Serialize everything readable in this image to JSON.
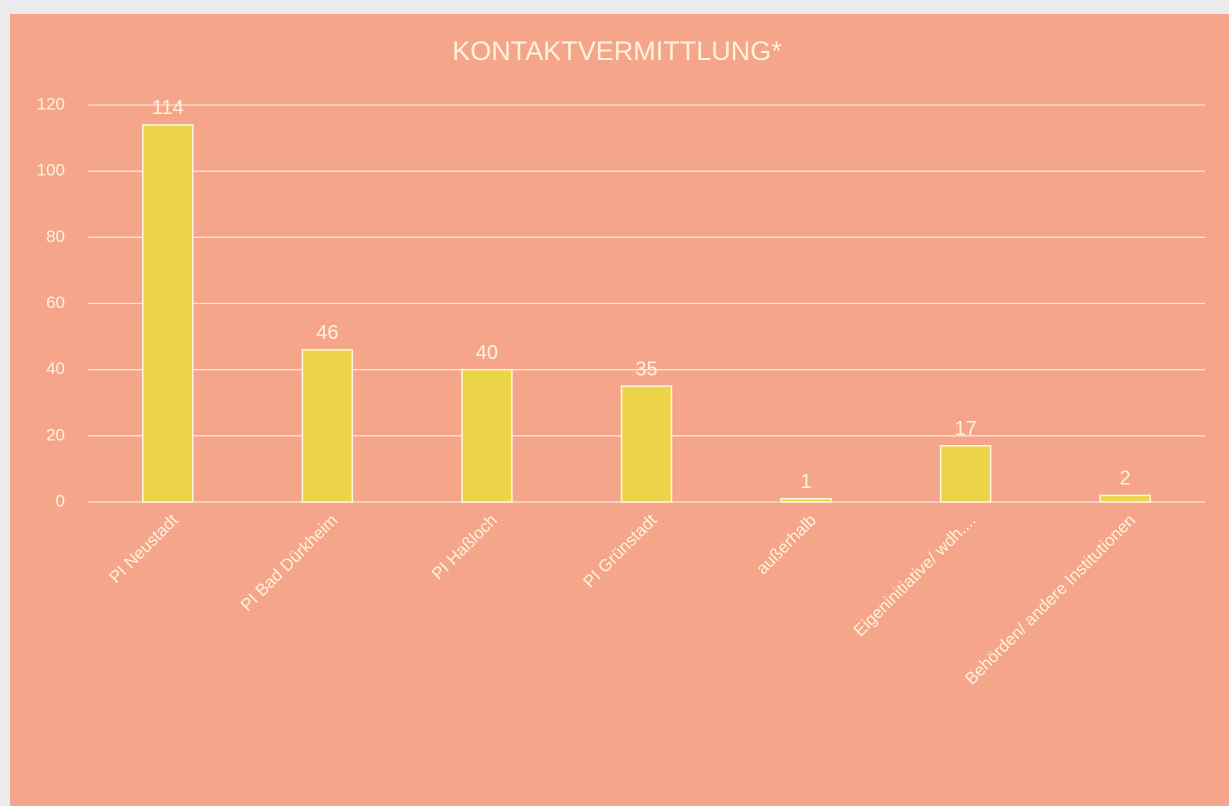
{
  "chart_data": {
    "type": "bar",
    "title": "KONTAKTVERMITTLUNG*",
    "categories": [
      "PI Neustadt",
      "PI Bad Dürkheim",
      "PI Haßloch",
      "PI Grünstadt",
      "außerhalb",
      "Eigeninitiative/ wdh....",
      "Behörden/ andere Institutionen"
    ],
    "values": [
      114,
      46,
      40,
      35,
      1,
      17,
      2
    ],
    "color": "#ebd447",
    "ylim": [
      0,
      120
    ],
    "yticks": [
      0,
      20,
      40,
      60,
      80,
      100,
      120
    ],
    "grid": true
  }
}
